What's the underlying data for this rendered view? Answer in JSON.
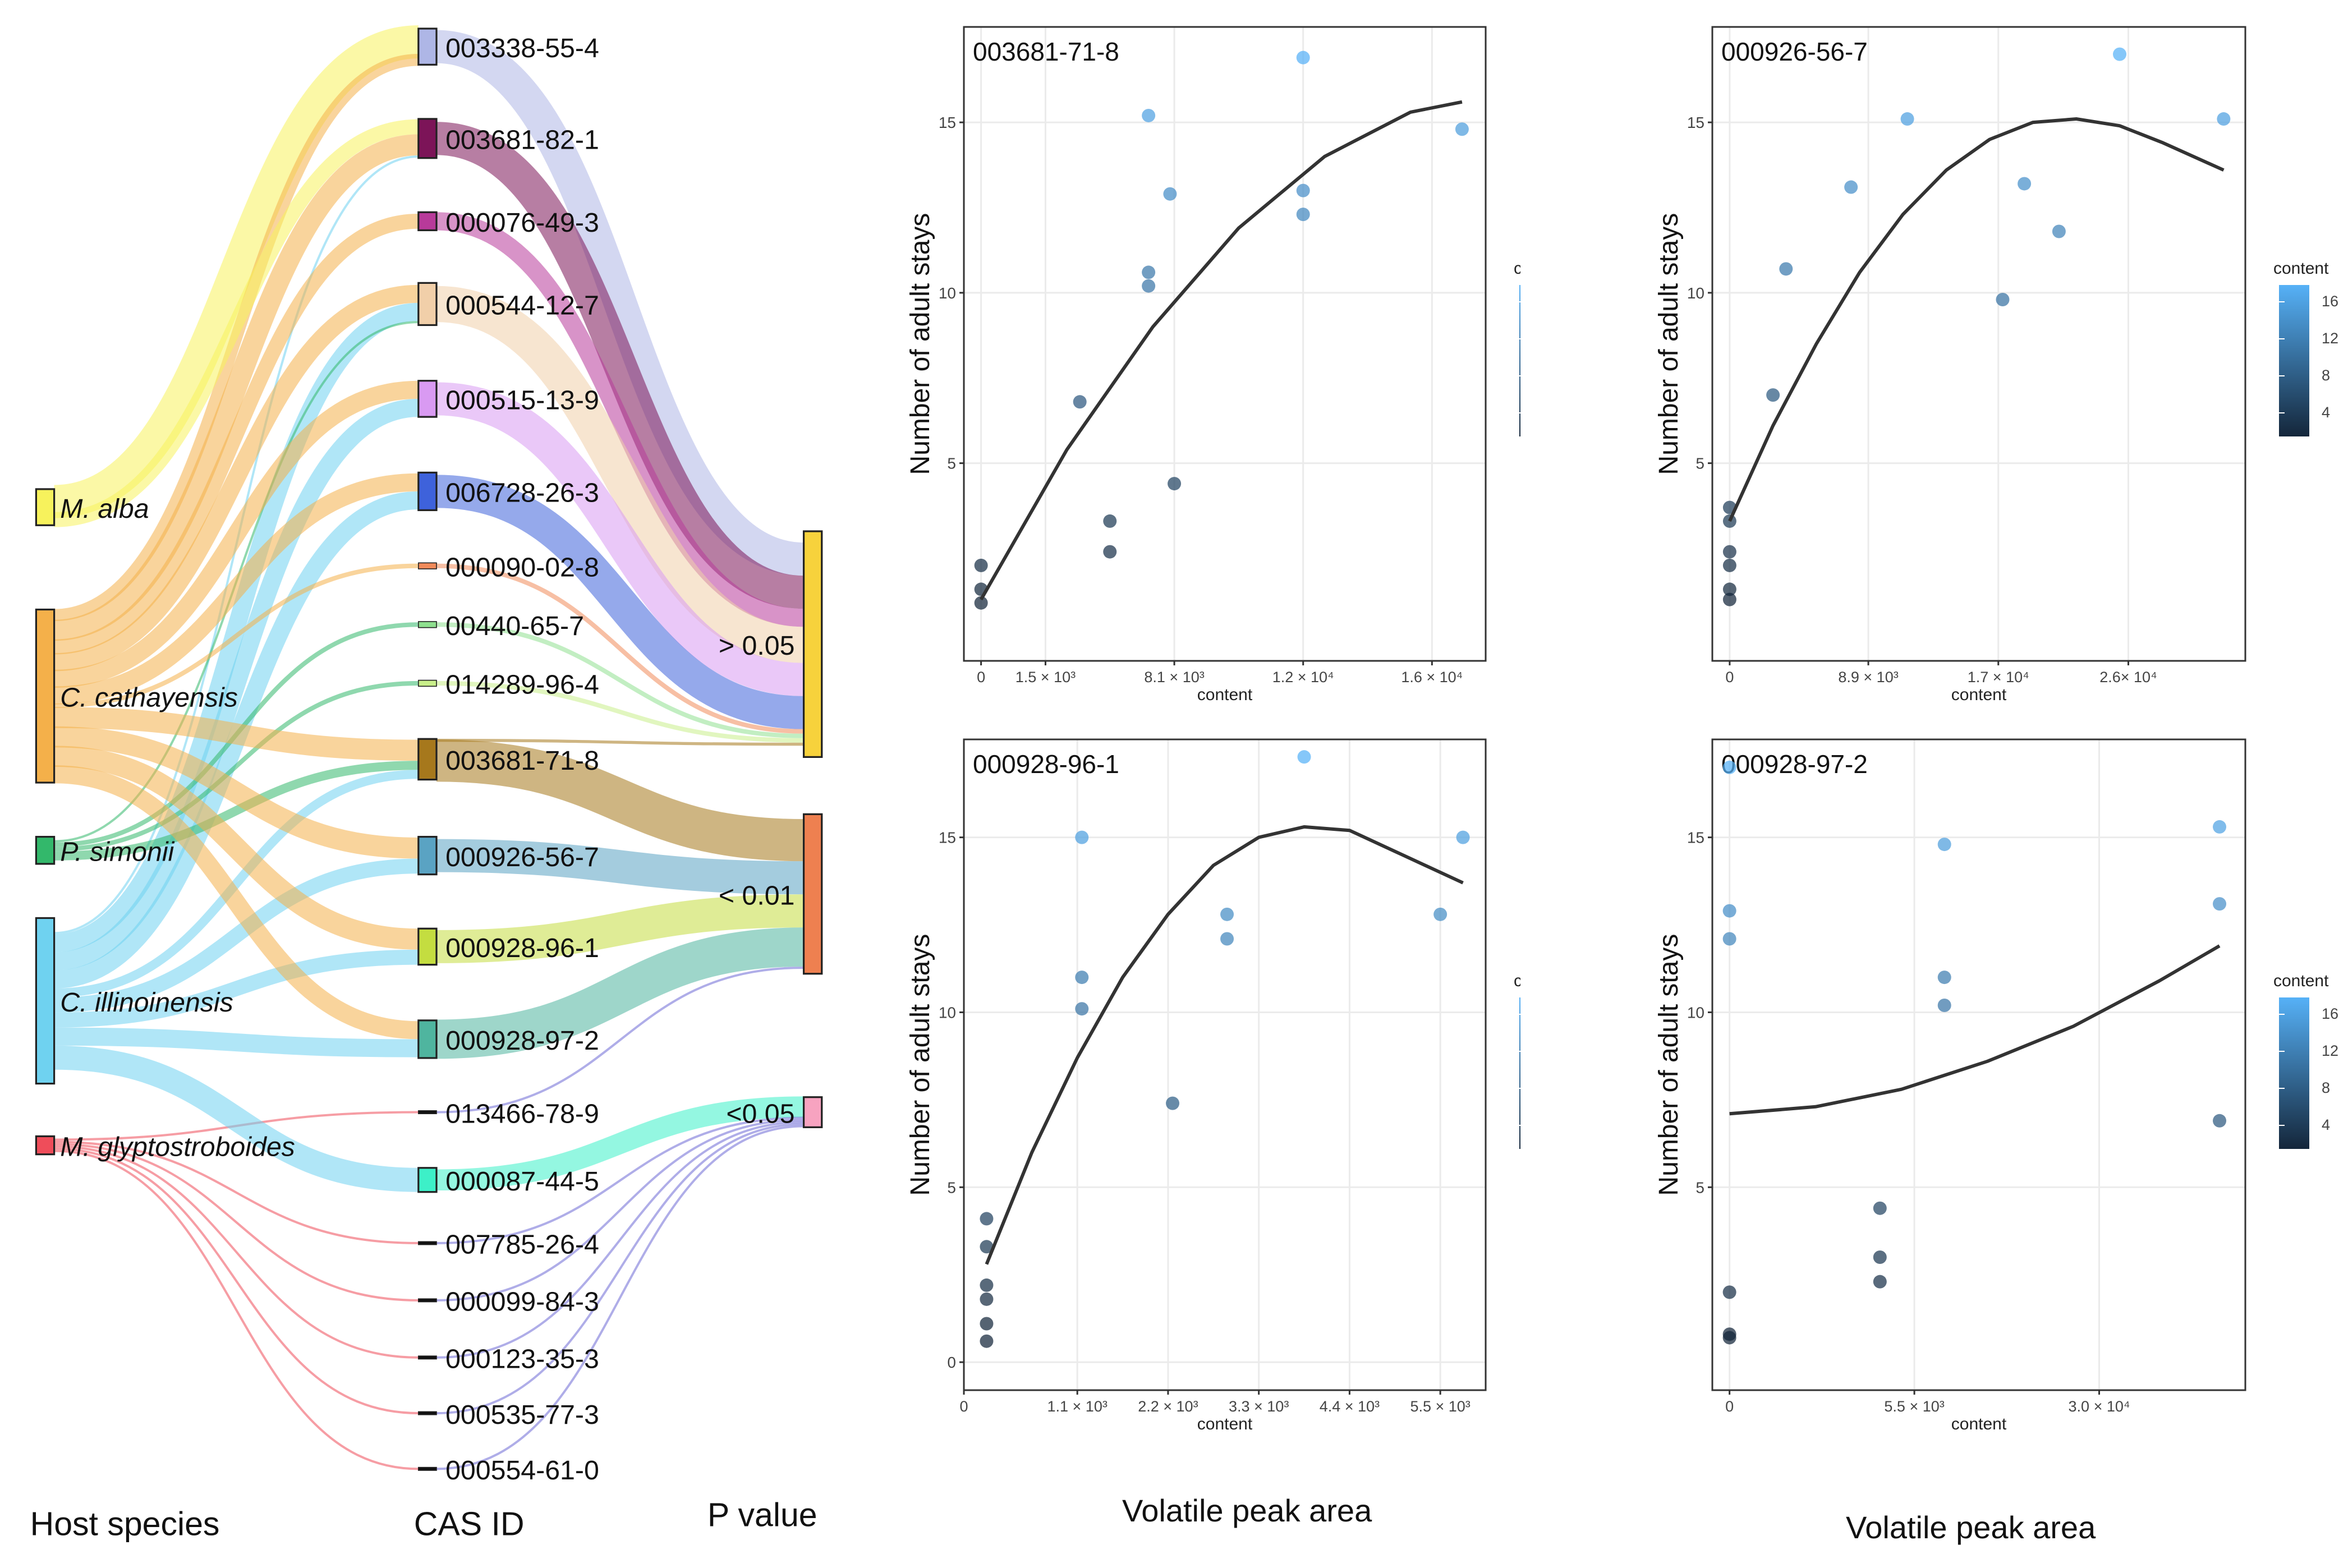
{
  "sankey": {
    "host_species": [
      {
        "name": "M. alba",
        "color": "#f7f25c"
      },
      {
        "name": "C. cathayensis",
        "color": "#f4b04a"
      },
      {
        "name": "P. simonii",
        "color": "#33b86b"
      },
      {
        "name": "C. illinoinensis",
        "color": "#6fd2f0"
      },
      {
        "name": "M. glyptostroboides",
        "color": "#ef4d5a"
      }
    ],
    "cas_ids": [
      {
        "id": "003338-55-4",
        "color": "#aeb6e6"
      },
      {
        "id": "003681-82-1",
        "color": "#7c1458"
      },
      {
        "id": "000076-49-3",
        "color": "#b83a9a"
      },
      {
        "id": "000544-12-7",
        "color": "#f1cfa9"
      },
      {
        "id": "000515-13-9",
        "color": "#d99af2"
      },
      {
        "id": "006728-26-3",
        "color": "#3e62db"
      },
      {
        "id": "000090-02-8",
        "color": "#f08a5a"
      },
      {
        "id": "00440-65-7",
        "color": "#8fe08f"
      },
      {
        "id": "014289-96-4",
        "color": "#c9ef8a"
      },
      {
        "id": "003681-71-8",
        "color": "#a6781c"
      },
      {
        "id": "000926-56-7",
        "color": "#5aa3c3"
      },
      {
        "id": "000928-96-1",
        "color": "#c4dd40"
      },
      {
        "id": "000928-97-2",
        "color": "#4fb59f"
      },
      {
        "id": "013466-78-9",
        "color": "#111111"
      },
      {
        "id": "000087-44-5",
        "color": "#3df0c8"
      },
      {
        "id": "007785-26-4",
        "color": "#111111"
      },
      {
        "id": "000099-84-3",
        "color": "#111111"
      },
      {
        "id": "000123-35-3",
        "color": "#111111"
      },
      {
        "id": "000535-77-3",
        "color": "#111111"
      },
      {
        "id": "000554-61-0",
        "color": "#111111"
      }
    ],
    "p_values": [
      {
        "label": "> 0.05",
        "color": "#f7d23c"
      },
      {
        "label": "< 0.01",
        "color": "#ee8050"
      },
      {
        "label": "<0.05",
        "color": "#f7a3c0"
      }
    ],
    "column_labels": {
      "host": "Host species",
      "cas": "CAS ID",
      "p": "P value"
    }
  },
  "axis_common": {
    "ylabel": "Number of adult stays",
    "xlabel": "content",
    "legend_title": "content",
    "legend_ticks": [
      "16",
      "12",
      "8",
      "4"
    ],
    "color_low": "#14263a",
    "color_high": "#56b1f7"
  },
  "bottom_labels": {
    "left": "Volatile peak area",
    "right": "Volatile peak area"
  },
  "chart_data": [
    {
      "type": "scatter",
      "title": "003681-71-8",
      "xlabel": "content",
      "ylabel": "Number of adult stays",
      "x_ticks": [
        {
          "v": 0,
          "label": "0"
        },
        {
          "v": 1.5,
          "label": "1.5 × 10³"
        },
        {
          "v": 4.5,
          "label": "8.1 × 10³"
        },
        {
          "v": 7.5,
          "label": "1.2 × 10⁴"
        },
        {
          "v": 10.5,
          "label": "1.6 × 10⁴"
        }
      ],
      "y_ticks": [
        5,
        10,
        15
      ],
      "xlim": [
        -0.4,
        11.75
      ],
      "ylim": [
        -0.8,
        17.8
      ],
      "points": [
        {
          "x": 0,
          "y": 2.0
        },
        {
          "x": 0,
          "y": 1.3
        },
        {
          "x": 0,
          "y": 0.9
        },
        {
          "x": 2.3,
          "y": 6.8
        },
        {
          "x": 3.0,
          "y": 3.3
        },
        {
          "x": 3.0,
          "y": 2.4
        },
        {
          "x": 3.9,
          "y": 15.2
        },
        {
          "x": 3.9,
          "y": 10.6
        },
        {
          "x": 3.9,
          "y": 10.2
        },
        {
          "x": 4.4,
          "y": 12.9
        },
        {
          "x": 4.5,
          "y": 4.4
        },
        {
          "x": 7.5,
          "y": 16.9
        },
        {
          "x": 7.5,
          "y": 13.0
        },
        {
          "x": 7.5,
          "y": 12.3
        },
        {
          "x": 11.2,
          "y": 14.8
        }
      ],
      "trend": [
        {
          "x": 0,
          "y": 1.0
        },
        {
          "x": 2,
          "y": 5.4
        },
        {
          "x": 4,
          "y": 9.0
        },
        {
          "x": 6,
          "y": 11.9
        },
        {
          "x": 8,
          "y": 14.0
        },
        {
          "x": 10,
          "y": 15.3
        },
        {
          "x": 11.2,
          "y": 15.6
        }
      ]
    },
    {
      "type": "scatter",
      "title": "000926-56-7",
      "xlabel": "content",
      "ylabel": "Number of adult stays",
      "x_ticks": [
        {
          "v": 0,
          "label": "0"
        },
        {
          "v": 3.2,
          "label": "8.9 × 10³"
        },
        {
          "v": 6.2,
          "label": "1.7 × 10⁴"
        },
        {
          "v": 9.2,
          "label": "2.6× 10⁴"
        }
      ],
      "y_ticks": [
        5,
        10,
        15
      ],
      "xlim": [
        -0.4,
        11.9
      ],
      "ylim": [
        -0.8,
        17.8
      ],
      "points": [
        {
          "x": 0,
          "y": 3.7
        },
        {
          "x": 0,
          "y": 3.3
        },
        {
          "x": 0,
          "y": 2.4
        },
        {
          "x": 0,
          "y": 2.0
        },
        {
          "x": 0,
          "y": 1.3
        },
        {
          "x": 0,
          "y": 1.0
        },
        {
          "x": 1.0,
          "y": 7.0
        },
        {
          "x": 1.3,
          "y": 10.7
        },
        {
          "x": 2.8,
          "y": 13.1
        },
        {
          "x": 4.1,
          "y": 15.1
        },
        {
          "x": 6.3,
          "y": 9.8
        },
        {
          "x": 6.8,
          "y": 13.2
        },
        {
          "x": 7.6,
          "y": 11.8
        },
        {
          "x": 9.0,
          "y": 17.0
        },
        {
          "x": 11.4,
          "y": 15.1
        }
      ],
      "trend": [
        {
          "x": 0,
          "y": 3.3
        },
        {
          "x": 1,
          "y": 6.1
        },
        {
          "x": 2,
          "y": 8.5
        },
        {
          "x": 3,
          "y": 10.6
        },
        {
          "x": 4,
          "y": 12.3
        },
        {
          "x": 5,
          "y": 13.6
        },
        {
          "x": 6,
          "y": 14.5
        },
        {
          "x": 7,
          "y": 15.0
        },
        {
          "x": 8,
          "y": 15.1
        },
        {
          "x": 9,
          "y": 14.9
        },
        {
          "x": 10,
          "y": 14.4
        },
        {
          "x": 11.4,
          "y": 13.6
        }
      ]
    },
    {
      "type": "scatter",
      "title": "000928-96-1",
      "xlabel": "content",
      "ylabel": "Number of adult stays",
      "x_ticks": [
        {
          "v": -0.5,
          "label": "0"
        },
        {
          "v": 2.0,
          "label": "1.1 × 10³"
        },
        {
          "v": 4.0,
          "label": "2.2 × 10³"
        },
        {
          "v": 6.0,
          "label": "3.3 × 10³"
        },
        {
          "v": 8.0,
          "label": "4.4 × 10³"
        },
        {
          "v": 10.0,
          "label": "5.5 × 10³"
        }
      ],
      "y_ticks": [
        0,
        5,
        10,
        15
      ],
      "xlim": [
        -0.5,
        11.0
      ],
      "ylim": [
        -0.8,
        17.8
      ],
      "points": [
        {
          "x": 0,
          "y": 4.1
        },
        {
          "x": 0,
          "y": 3.3
        },
        {
          "x": 0,
          "y": 2.2
        },
        {
          "x": 0,
          "y": 1.8
        },
        {
          "x": 0,
          "y": 1.1
        },
        {
          "x": 0,
          "y": 0.6
        },
        {
          "x": 2.1,
          "y": 15.0
        },
        {
          "x": 2.1,
          "y": 11.0
        },
        {
          "x": 2.1,
          "y": 10.1
        },
        {
          "x": 4.1,
          "y": 7.4
        },
        {
          "x": 5.3,
          "y": 12.8
        },
        {
          "x": 5.3,
          "y": 12.1
        },
        {
          "x": 7.0,
          "y": 17.3
        },
        {
          "x": 10.0,
          "y": 12.8
        },
        {
          "x": 10.5,
          "y": 15.0
        }
      ],
      "trend": [
        {
          "x": 0,
          "y": 2.8
        },
        {
          "x": 1,
          "y": 6.0
        },
        {
          "x": 2,
          "y": 8.7
        },
        {
          "x": 3,
          "y": 11.0
        },
        {
          "x": 4,
          "y": 12.8
        },
        {
          "x": 5,
          "y": 14.2
        },
        {
          "x": 6,
          "y": 15.0
        },
        {
          "x": 7,
          "y": 15.3
        },
        {
          "x": 8,
          "y": 15.2
        },
        {
          "x": 9,
          "y": 14.6
        },
        {
          "x": 10.5,
          "y": 13.7
        }
      ]
    },
    {
      "type": "scatter",
      "title": "000928-97-2",
      "xlabel": "content",
      "ylabel": "Number of adult stays",
      "x_ticks": [
        {
          "v": 0,
          "label": "0"
        },
        {
          "v": 4.3,
          "label": "5.5 × 10³"
        },
        {
          "v": 8.6,
          "label": "3.0 × 10⁴"
        }
      ],
      "y_ticks": [
        5,
        10,
        15
      ],
      "xlim": [
        -0.4,
        12.0
      ],
      "ylim": [
        -0.8,
        17.8
      ],
      "points": [
        {
          "x": 0,
          "y": 17.0
        },
        {
          "x": 0,
          "y": 12.9
        },
        {
          "x": 0,
          "y": 12.1
        },
        {
          "x": 0,
          "y": 2.0
        },
        {
          "x": 0,
          "y": 0.8
        },
        {
          "x": 0,
          "y": 0.7
        },
        {
          "x": 3.5,
          "y": 4.4
        },
        {
          "x": 3.5,
          "y": 3.0
        },
        {
          "x": 3.5,
          "y": 2.3
        },
        {
          "x": 5.0,
          "y": 14.8
        },
        {
          "x": 5.0,
          "y": 11.0
        },
        {
          "x": 5.0,
          "y": 10.2
        },
        {
          "x": 11.4,
          "y": 15.3
        },
        {
          "x": 11.4,
          "y": 13.1
        },
        {
          "x": 11.4,
          "y": 6.9
        }
      ],
      "trend": [
        {
          "x": 0,
          "y": 7.1
        },
        {
          "x": 2,
          "y": 7.3
        },
        {
          "x": 4,
          "y": 7.8
        },
        {
          "x": 6,
          "y": 8.6
        },
        {
          "x": 8,
          "y": 9.6
        },
        {
          "x": 10,
          "y": 10.9
        },
        {
          "x": 11.4,
          "y": 11.9
        }
      ]
    }
  ]
}
